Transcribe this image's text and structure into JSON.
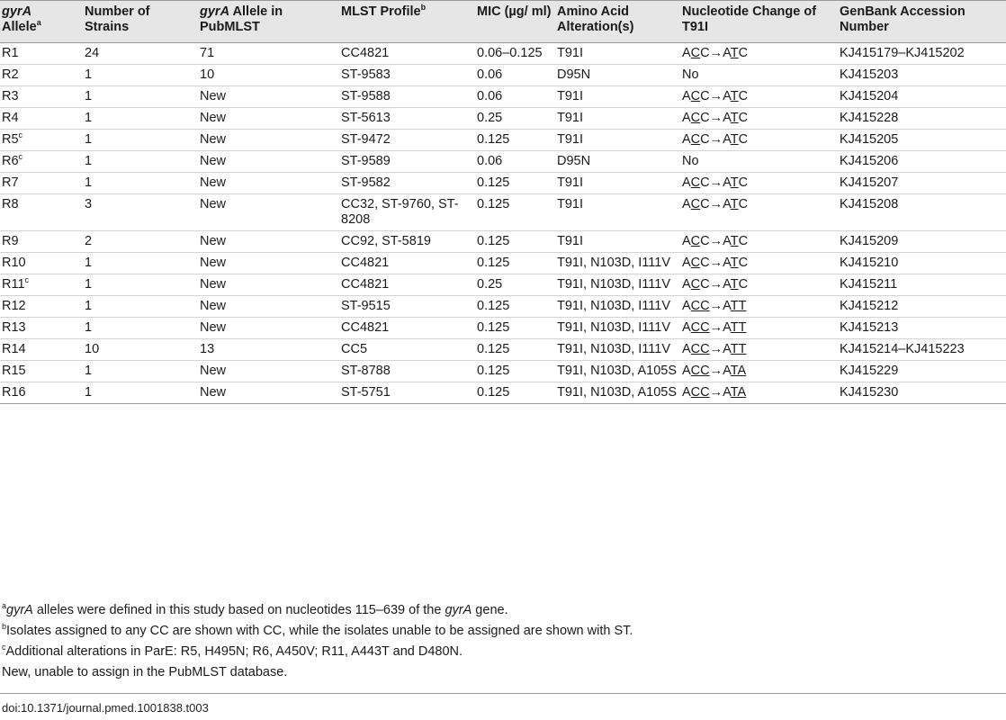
{
  "headers": {
    "allele_italic": "gyrA",
    "allele_rest": "Allele",
    "allele_sup": "a",
    "strains": "Number of Strains",
    "pub_italic": "gyrA",
    "pub_rest": " Allele in PubMLST",
    "mlst": "MLST Profile",
    "mlst_sup": "b",
    "mic": "MIC (µg/ ml)",
    "amino": "Amino Acid Alteration(s)",
    "nuc": "Nucleotide Change of T91I",
    "genbank": "GenBank Accession Number"
  },
  "rows": [
    {
      "allele": "R1",
      "sup": "",
      "strains": "24",
      "pub": "71",
      "mlst": "CC4821",
      "mic": "0.06–0.125",
      "amino": "T91I",
      "nuc": "ACC→ATC",
      "acc": "KJ415179–KJ415202"
    },
    {
      "allele": "R2",
      "sup": "",
      "strains": "1",
      "pub": "10",
      "mlst": "ST-9583",
      "mic": "0.06",
      "amino": "D95N",
      "nuc": "No",
      "acc": "KJ415203"
    },
    {
      "allele": "R3",
      "sup": "",
      "strains": "1",
      "pub": "New",
      "mlst": "ST-9588",
      "mic": "0.06",
      "amino": "T91I",
      "nuc": "ACC→ATC",
      "acc": "KJ415204"
    },
    {
      "allele": "R4",
      "sup": "",
      "strains": "1",
      "pub": "New",
      "mlst": "ST-5613",
      "mic": "0.25",
      "amino": "T91I",
      "nuc": "ACC→ATC",
      "acc": "KJ415228"
    },
    {
      "allele": "R5",
      "sup": "c",
      "strains": "1",
      "pub": "New",
      "mlst": "ST-9472",
      "mic": "0.125",
      "amino": "T91I",
      "nuc": "ACC→ATC",
      "acc": "KJ415205"
    },
    {
      "allele": "R6",
      "sup": "c",
      "strains": "1",
      "pub": "New",
      "mlst": "ST-9589",
      "mic": "0.06",
      "amino": "D95N",
      "nuc": "No",
      "acc": "KJ415206"
    },
    {
      "allele": "R7",
      "sup": "",
      "strains": "1",
      "pub": "New",
      "mlst": "ST-9582",
      "mic": "0.125",
      "amino": "T91I",
      "nuc": "ACC→ATC",
      "acc": "KJ415207"
    },
    {
      "allele": "R8",
      "sup": "",
      "strains": "3",
      "pub": "New",
      "mlst": "CC32, ST-9760, ST-8208",
      "mic": "0.125",
      "amino": "T91I",
      "nuc": "ACC→ATC",
      "acc": "KJ415208"
    },
    {
      "allele": "R9",
      "sup": "",
      "strains": "2",
      "pub": "New",
      "mlst": "CC92, ST-5819",
      "mic": "0.125",
      "amino": "T91I",
      "nuc": "ACC→ATC",
      "acc": "KJ415209"
    },
    {
      "allele": "R10",
      "sup": "",
      "strains": "1",
      "pub": "New",
      "mlst": "CC4821",
      "mic": "0.125",
      "amino": "T91I, N103D, I111V",
      "nuc": "ACC→ATC",
      "acc": "KJ415210"
    },
    {
      "allele": "R11",
      "sup": "c",
      "strains": "1",
      "pub": "New",
      "mlst": "CC4821",
      "mic": "0.25",
      "amino": "T91I, N103D, I111V",
      "nuc": "ACC→ATC",
      "acc": "KJ415211"
    },
    {
      "allele": "R12",
      "sup": "",
      "strains": "1",
      "pub": "New",
      "mlst": "ST-9515",
      "mic": "0.125",
      "amino": "T91I, N103D, I111V",
      "nuc": "ACC→ATT",
      "acc": "KJ415212"
    },
    {
      "allele": "R13",
      "sup": "",
      "strains": "1",
      "pub": "New",
      "mlst": "CC4821",
      "mic": "0.125",
      "amino": "T91I, N103D, I111V",
      "nuc": "ACC→ATT",
      "acc": "KJ415213"
    },
    {
      "allele": "R14",
      "sup": "",
      "strains": "10",
      "pub": "13",
      "mlst": "CC5",
      "mic": "0.125",
      "amino": "T91I, N103D, I111V",
      "nuc": "ACC→ATT",
      "acc": "KJ415214–KJ415223"
    },
    {
      "allele": "R15",
      "sup": "",
      "strains": "1",
      "pub": "New",
      "mlst": "ST-8788",
      "mic": "0.125",
      "amino": "T91I, N103D, A105S",
      "nuc": "ACC→ATA",
      "acc": "KJ415229"
    },
    {
      "allele": "R16",
      "sup": "",
      "strains": "1",
      "pub": "New",
      "mlst": "ST-5751",
      "mic": "0.125",
      "amino": "T91I, N103D, A105S",
      "nuc": "ACC→ATA",
      "acc": "KJ415230"
    }
  ],
  "footnotes": {
    "a_sup": "a",
    "a_italic": "gyrA",
    "a_mid": " alleles were defined in this study based on nucleotides 115–639 of the ",
    "a_italic2": "gyrA",
    "a_end": " gene.",
    "b_sup": "b",
    "b_text": "Isolates assigned to any CC are shown with CC, while the isolates unable to be assigned are shown with ST.",
    "c_sup": "c",
    "c_text": "Additional alterations in ParE: R5, H495N; R6, A450V; R11, A443T and D480N.",
    "new_text": "New, unable to assign in the PubMLST database."
  },
  "doi": "doi:10.1371/journal.pmed.1001838.t003"
}
